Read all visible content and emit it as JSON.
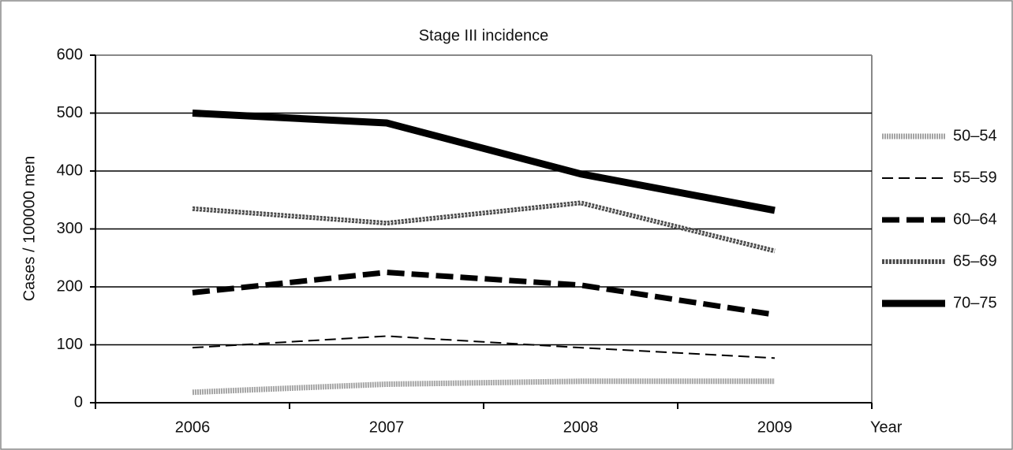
{
  "chart_data": {
    "type": "line",
    "title": "Stage III incidence",
    "y_label": "Cases / 100000 men",
    "x_label": "Year",
    "categories": [
      "2006",
      "2007",
      "2008",
      "2009"
    ],
    "series": [
      {
        "name": "50–54",
        "color": "#9a9a9a",
        "values": [
          18,
          32,
          37,
          37
        ]
      },
      {
        "name": "55–59",
        "color": "#000000",
        "values": [
          95,
          115,
          95,
          77
        ]
      },
      {
        "name": "60–64",
        "color": "#000000",
        "values": [
          190,
          225,
          203,
          152
        ]
      },
      {
        "name": "65–69",
        "color": "#4a4a4a",
        "values": [
          335,
          310,
          345,
          262
        ]
      },
      {
        "name": "70–75",
        "color": "#000000",
        "values": [
          500,
          483,
          395,
          332
        ]
      }
    ],
    "ylim": [
      0,
      600
    ],
    "yticks": [
      0,
      100,
      200,
      300,
      400,
      500,
      600
    ],
    "grid": true,
    "legend": "right"
  }
}
